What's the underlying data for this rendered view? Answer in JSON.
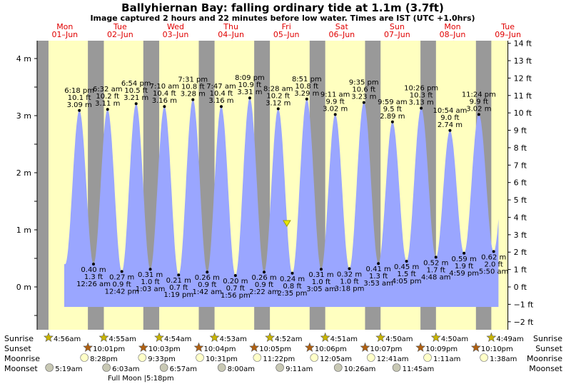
{
  "header": {
    "title": "Ballyhiernan Bay: falling  ordinary tide at 1.1m (3.7ft)",
    "subtitle": "Image captured 2 hours and 22 minutes before low water. Times are IST (UTC +1.0hrs)"
  },
  "colors": {
    "day": "#ffffc0",
    "night": "#999999",
    "tide_fill": "#9aa6ff",
    "day_label": "#e00000",
    "sun_marker": "#c8b400",
    "sunset_marker": "#b06010",
    "moonrise_marker": "#ffffc8",
    "moonset_marker": "#c8c8b4"
  },
  "days": [
    {
      "dow": "Mon",
      "date": "01–Jun"
    },
    {
      "dow": "Tue",
      "date": "02–Jun"
    },
    {
      "dow": "Wed",
      "date": "03–Jun"
    },
    {
      "dow": "Thu",
      "date": "04–Jun"
    },
    {
      "dow": "Fri",
      "date": "05–Jun"
    },
    {
      "dow": "Sat",
      "date": "06–Jun"
    },
    {
      "dow": "Sun",
      "date": "07–Jun"
    },
    {
      "dow": "Mon",
      "date": "08–Jun"
    },
    {
      "dow": "Tue",
      "date": "09–Jun"
    }
  ],
  "chart_data": {
    "type": "area",
    "title": "Ballyhiernan Bay: falling  ordinary tide at 1.1m (3.7ft)",
    "x_range_days": [
      0,
      8.5
    ],
    "y_left": {
      "unit": "m",
      "range": [
        -0.5,
        4.3
      ],
      "ticks": [
        {
          "v": 0,
          "label": "0 m"
        },
        {
          "v": 1,
          "label": "1 m"
        },
        {
          "v": 2,
          "label": "2 m"
        },
        {
          "v": 3,
          "label": "3 m"
        },
        {
          "v": 4,
          "label": "4 m"
        }
      ]
    },
    "y_right": {
      "unit": "ft",
      "ticks": [
        "−2 ft",
        "−1 ft",
        "0 ft",
        "1 ft",
        "2 ft",
        "3 ft",
        "4 ft",
        "5 ft",
        "6 ft",
        "7 ft",
        "8 ft",
        "9 ft",
        "10 ft",
        "11 ft",
        "12 ft",
        "13 ft",
        "14 ft"
      ]
    },
    "current": {
      "time": "Fri 05-Jun 12:13pm",
      "height_m": 1.1,
      "height_ft": 3.7
    },
    "extremes": [
      {
        "type": "high",
        "day": 0,
        "time": "6:18 pm",
        "ft": "10.1 ft",
        "m": "3.09 m",
        "h": 3.09
      },
      {
        "type": "low",
        "day": 1,
        "time": "12:26 am",
        "ft": "1.3 ft",
        "m": "0.40 m",
        "h": 0.4
      },
      {
        "type": "high",
        "day": 1,
        "time": "6:32 am",
        "ft": "10.2 ft",
        "m": "3.11 m",
        "h": 3.11
      },
      {
        "type": "low",
        "day": 1,
        "time": "12:42 pm",
        "ft": "0.9 ft",
        "m": "0.27 m",
        "h": 0.27
      },
      {
        "type": "high",
        "day": 1,
        "time": "6:54 pm",
        "ft": "10.5 ft",
        "m": "3.21 m",
        "h": 3.21
      },
      {
        "type": "low",
        "day": 2,
        "time": "1:03 am",
        "ft": "1.0 ft",
        "m": "0.31 m",
        "h": 0.31
      },
      {
        "type": "high",
        "day": 2,
        "time": "7:10 am",
        "ft": "10.4 ft",
        "m": "3.16 m",
        "h": 3.16
      },
      {
        "type": "low",
        "day": 2,
        "time": "1:19 pm",
        "ft": "0.7 ft",
        "m": "0.21 m",
        "h": 0.21
      },
      {
        "type": "high",
        "day": 2,
        "time": "7:31 pm",
        "ft": "10.8 ft",
        "m": "3.28 m",
        "h": 3.28
      },
      {
        "type": "low",
        "day": 3,
        "time": "1:42 am",
        "ft": "0.9 ft",
        "m": "0.26 m",
        "h": 0.26
      },
      {
        "type": "high",
        "day": 3,
        "time": "7:47 am",
        "ft": "10.4 ft",
        "m": "3.16 m",
        "h": 3.16
      },
      {
        "type": "low",
        "day": 3,
        "time": "1:56 pm",
        "ft": "0.7 ft",
        "m": "0.20 m",
        "h": 0.2
      },
      {
        "type": "high",
        "day": 3,
        "time": "8:09 pm",
        "ft": "10.9 ft",
        "m": "3.31 m",
        "h": 3.31
      },
      {
        "type": "low",
        "day": 4,
        "time": "2:22 am",
        "ft": "0.9 ft",
        "m": "0.26 m",
        "h": 0.26
      },
      {
        "type": "high",
        "day": 4,
        "time": "8:28 am",
        "ft": "10.2 ft",
        "m": "3.12 m",
        "h": 3.12
      },
      {
        "type": "low",
        "day": 4,
        "time": "2:35 pm",
        "ft": "0.8 ft",
        "m": "0.24 m",
        "h": 0.24
      },
      {
        "type": "high",
        "day": 4,
        "time": "8:51 pm",
        "ft": "10.8 ft",
        "m": "3.29 m",
        "h": 3.29
      },
      {
        "type": "low",
        "day": 5,
        "time": "3:05 am",
        "ft": "1.0 ft",
        "m": "0.31 m",
        "h": 0.31
      },
      {
        "type": "high",
        "day": 5,
        "time": "9:11 am",
        "ft": "9.9 ft",
        "m": "3.02 m",
        "h": 3.02
      },
      {
        "type": "low",
        "day": 5,
        "time": "3:18 pm",
        "ft": "1.0 ft",
        "m": "0.32 m",
        "h": 0.32
      },
      {
        "type": "high",
        "day": 5,
        "time": "9:35 pm",
        "ft": "10.6 ft",
        "m": "3.23 m",
        "h": 3.23
      },
      {
        "type": "low",
        "day": 6,
        "time": "3:53 am",
        "ft": "1.3 ft",
        "m": "0.41 m",
        "h": 0.41
      },
      {
        "type": "high",
        "day": 6,
        "time": "9:59 am",
        "ft": "9.5 ft",
        "m": "2.89 m",
        "h": 2.89
      },
      {
        "type": "low",
        "day": 6,
        "time": "4:05 pm",
        "ft": "1.5 ft",
        "m": "0.45 m",
        "h": 0.45
      },
      {
        "type": "high",
        "day": 6,
        "time": "10:26 pm",
        "ft": "10.3 ft",
        "m": "3.13 m",
        "h": 3.13
      },
      {
        "type": "low",
        "day": 7,
        "time": "4:48 am",
        "ft": "1.7 ft",
        "m": "0.52 m",
        "h": 0.52
      },
      {
        "type": "high",
        "day": 7,
        "time": "10:54 am",
        "ft": "9.0 ft",
        "m": "2.74 m",
        "h": 2.74
      },
      {
        "type": "low",
        "day": 7,
        "time": "4:59 pm",
        "ft": "1.9 ft",
        "m": "0.59 m",
        "h": 0.59
      },
      {
        "type": "high",
        "day": 7,
        "time": "11:24 pm",
        "ft": "9.9 ft",
        "m": "3.02 m",
        "h": 3.02
      },
      {
        "type": "low",
        "day": 8,
        "time": "5:50 am",
        "ft": "2.0 ft",
        "m": "0.62 m",
        "h": 0.62
      }
    ],
    "sun": [
      {
        "day": 0,
        "rise": "4:56am",
        "set": null
      },
      {
        "day": 1,
        "rise": "4:55am",
        "set": "10:01pm"
      },
      {
        "day": 2,
        "rise": "4:54am",
        "set": "10:03pm"
      },
      {
        "day": 3,
        "rise": "4:53am",
        "set": "10:04pm"
      },
      {
        "day": 4,
        "rise": "4:52am",
        "set": "10:05pm"
      },
      {
        "day": 5,
        "rise": "4:51am",
        "set": "10:06pm"
      },
      {
        "day": 6,
        "rise": "4:50am",
        "set": "10:07pm"
      },
      {
        "day": 7,
        "rise": "4:50am",
        "set": "10:09pm"
      },
      {
        "day": 8,
        "rise": "4:49am",
        "set": "10:10pm"
      }
    ],
    "moonrise": [
      {
        "day": 1,
        "time": "8:28pm"
      },
      {
        "day": 2,
        "time": "9:33pm"
      },
      {
        "day": 3,
        "time": "10:31pm"
      },
      {
        "day": 4,
        "time": "11:22pm"
      },
      {
        "day": 6,
        "time": "12:05am"
      },
      {
        "day": 7,
        "time": "12:41am"
      },
      {
        "day": 8,
        "time": "1:11am"
      },
      {
        "day": 9,
        "time": "1:38am"
      }
    ],
    "moonset": [
      {
        "day": 1,
        "time": "5:19am"
      },
      {
        "day": 2,
        "time": "6:03am"
      },
      {
        "day": 3,
        "time": "6:57am"
      },
      {
        "day": 4,
        "time": "8:00am"
      },
      {
        "day": 5,
        "time": "9:11am"
      },
      {
        "day": 6,
        "time": "10:26am"
      },
      {
        "day": 7,
        "time": "11:45am"
      }
    ]
  },
  "rows": {
    "sunrise": "Sunrise",
    "sunset": "Sunset",
    "moonrise": "Moonrise",
    "moonset": "Moonset"
  },
  "full_moon": "Full Moon |5:18pm"
}
